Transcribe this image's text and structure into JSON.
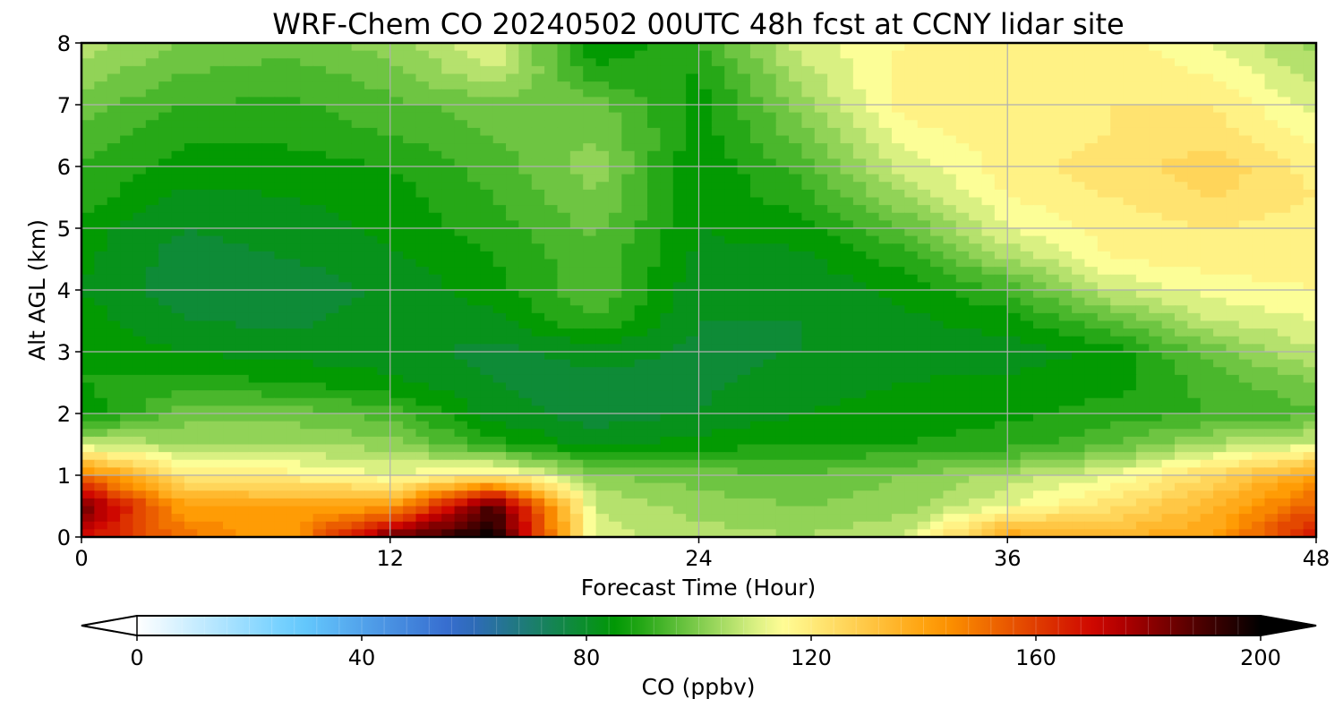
{
  "chart_data": {
    "type": "heatmap",
    "title": "WRF-Chem CO  20240502 00UTC 48h fcst at CCNY lidar site",
    "xlabel": "Forecast Time (Hour)",
    "ylabel": "Alt AGL (km)",
    "xlim": [
      0,
      48
    ],
    "ylim": [
      0,
      8
    ],
    "xticks": [
      "0",
      "12",
      "24",
      "36",
      "48"
    ],
    "yticks": [
      "0",
      "1",
      "2",
      "3",
      "4",
      "5",
      "6",
      "7",
      "8"
    ],
    "grid": true,
    "x": [
      0,
      4,
      8,
      12,
      16,
      20,
      24,
      28,
      32,
      36,
      40,
      44,
      48
    ],
    "y": [
      0,
      0.5,
      1,
      1.5,
      2,
      2.5,
      3,
      3.5,
      4,
      4.5,
      5,
      5.5,
      6,
      6.5,
      7,
      7.5,
      8
    ],
    "values": [
      [
        170,
        150,
        140,
        185,
        200,
        110,
        106,
        104,
        108,
        140,
        135,
        140,
        170
      ],
      [
        185,
        140,
        140,
        140,
        190,
        108,
        102,
        100,
        102,
        112,
        122,
        135,
        155
      ],
      [
        150,
        120,
        118,
        112,
        120,
        100,
        98,
        96,
        100,
        105,
        112,
        125,
        140
      ],
      [
        108,
        104,
        104,
        102,
        90,
        82,
        86,
        88,
        88,
        90,
        95,
        105,
        110
      ],
      [
        85,
        98,
        98,
        94,
        82,
        78,
        80,
        84,
        86,
        87,
        90,
        92,
        95
      ],
      [
        88,
        90,
        88,
        85,
        80,
        78,
        79,
        82,
        84,
        85,
        86,
        94,
        100
      ],
      [
        88,
        84,
        82,
        82,
        78,
        82,
        79,
        80,
        82,
        82,
        85,
        98,
        108
      ],
      [
        86,
        80,
        79,
        82,
        83,
        92,
        80,
        80,
        83,
        86,
        96,
        108,
        112
      ],
      [
        84,
        77,
        77,
        81,
        86,
        96,
        81,
        81,
        85,
        92,
        108,
        114,
        116
      ],
      [
        85,
        78,
        80,
        83,
        88,
        95,
        83,
        83,
        90,
        104,
        116,
        118,
        118
      ],
      [
        86,
        80,
        82,
        85,
        90,
        97,
        84,
        86,
        96,
        112,
        118,
        120,
        118
      ],
      [
        90,
        83,
        84,
        86,
        92,
        100,
        85,
        90,
        104,
        116,
        120,
        124,
        120
      ],
      [
        92,
        86,
        86,
        88,
        94,
        102,
        84,
        94,
        110,
        118,
        122,
        127,
        118
      ],
      [
        94,
        89,
        89,
        92,
        96,
        100,
        86,
        98,
        114,
        118,
        120,
        122,
        115
      ],
      [
        98,
        92,
        91,
        95,
        98,
        98,
        86,
        102,
        118,
        120,
        120,
        120,
        110
      ],
      [
        102,
        96,
        94,
        98,
        108,
        90,
        88,
        106,
        118,
        120,
        118,
        116,
        106
      ],
      [
        106,
        100,
        98,
        102,
        112,
        84,
        92,
        110,
        116,
        120,
        118,
        112,
        102
      ]
    ],
    "colorbar": {
      "label": "CO  (ppbv)",
      "min": 0,
      "max": 200,
      "ticks": [
        "0",
        "40",
        "80",
        "120",
        "160",
        "200"
      ],
      "extend": "both",
      "colors": [
        "#ffffff",
        "#66ccff",
        "#3366cc",
        "#009900",
        "#ffff99",
        "#ff9900",
        "#cc0000",
        "#000000"
      ]
    }
  }
}
